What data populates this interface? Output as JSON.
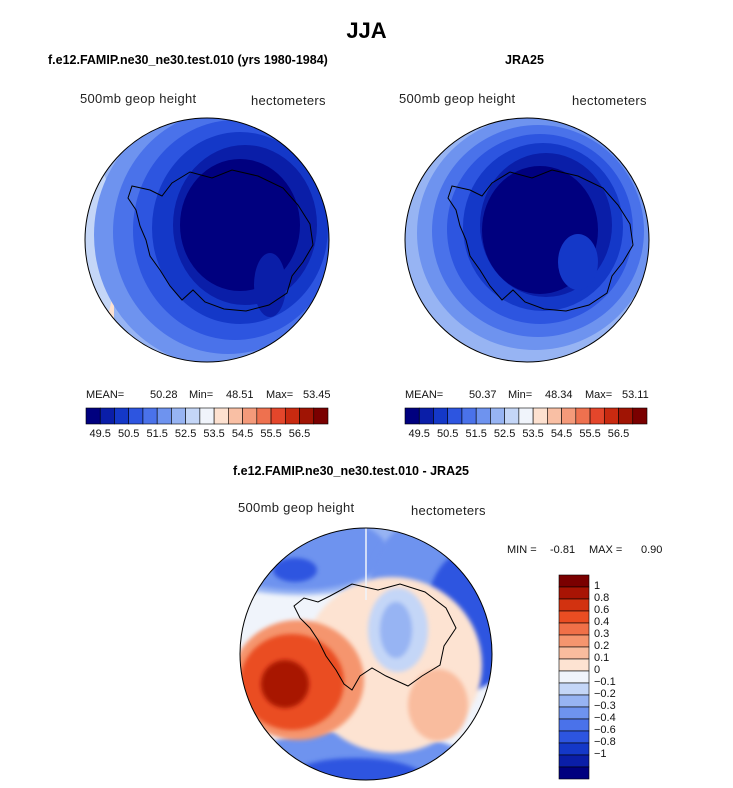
{
  "page": {
    "title": "JJA"
  },
  "panels": [
    {
      "id": "left",
      "subtitle": "f.e12.FAMIP.ne30_ne30.test.010 (yrs 1980-1984)",
      "variable_label": "500mb geop height",
      "units_label": "hectometers",
      "mean_label": "MEAN=",
      "mean": "50.28",
      "min_label": "Min=",
      "min": "48.51",
      "max_label": "Max=",
      "max": "53.45"
    },
    {
      "id": "right",
      "subtitle": "JRA25",
      "variable_label": "500mb geop height",
      "units_label": "hectometers",
      "mean_label": "MEAN=",
      "mean": "50.37",
      "min_label": "Min=",
      "min": "48.34",
      "max_label": "Max=",
      "max": "53.11"
    },
    {
      "id": "diff",
      "subtitle": "f.e12.FAMIP.ne30_ne30.test.010 - JRA25",
      "variable_label": "500mb geop height",
      "units_label": "hectometers",
      "min_label": "MIN =",
      "min": "-0.81",
      "max_label": "MAX =",
      "max": "0.90"
    }
  ],
  "chart_data": [
    {
      "type": "heatmap",
      "projection": "south-polar-stereographic",
      "title": "f.e12.FAMIP.ne30_ne30.test.010 (yrs 1980-1984)",
      "field": "500mb geop height",
      "units": "hectometers",
      "stats": {
        "mean": 50.28,
        "min": 48.51,
        "max": 53.45
      },
      "colorbar_ticks": [
        "49.5",
        "50.5",
        "51.5",
        "52.5",
        "53.5",
        "54.5",
        "55.5",
        "56.5"
      ],
      "colorbar_orientation": "horizontal"
    },
    {
      "type": "heatmap",
      "projection": "south-polar-stereographic",
      "title": "JRA25",
      "field": "500mb geop height",
      "units": "hectometers",
      "stats": {
        "mean": 50.37,
        "min": 48.34,
        "max": 53.11
      },
      "colorbar_ticks": [
        "49.5",
        "50.5",
        "51.5",
        "52.5",
        "53.5",
        "54.5",
        "55.5",
        "56.5"
      ],
      "colorbar_orientation": "horizontal"
    },
    {
      "type": "heatmap",
      "projection": "south-polar-stereographic",
      "title": "f.e12.FAMIP.ne30_ne30.test.010 - JRA25",
      "field": "500mb geop height",
      "units": "hectometers",
      "stats": {
        "min": -0.81,
        "max": 0.9
      },
      "colorbar_ticks": [
        "1",
        "0.8",
        "0.6",
        "0.4",
        "0.3",
        "0.2",
        "0.1",
        "0",
        "−0.1",
        "−0.2",
        "−0.3",
        "−0.4",
        "−0.6",
        "−0.8",
        "−1"
      ],
      "colorbar_orientation": "vertical"
    }
  ],
  "colors": {
    "abs_scale": [
      "#00007f",
      "#0a1ea8",
      "#1438c8",
      "#2d55e0",
      "#4a72ea",
      "#6e93ef",
      "#97b4f3",
      "#c4d6f7",
      "#f0f4fb",
      "#fde1d0",
      "#f9bfa4",
      "#f49a7a",
      "#ee714f",
      "#e4462b",
      "#c92a10",
      "#a01404",
      "#7a0000"
    ],
    "diff_scale": [
      "#7a0000",
      "#a81404",
      "#d23210",
      "#ea4d22",
      "#f07048",
      "#f5956e",
      "#f9bc9e",
      "#fde3d2",
      "#f0f4fb",
      "#c4d6f7",
      "#97b4f3",
      "#6e93ef",
      "#4a72ea",
      "#2d55e0",
      "#1438c8",
      "#0a1ea8",
      "#00007f"
    ]
  }
}
